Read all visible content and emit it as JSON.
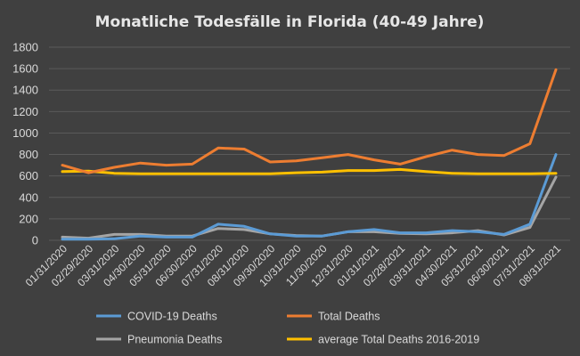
{
  "chart_data": {
    "type": "line",
    "title": "Monatliche Todesfälle  in Florida  (40-49 Jahre)",
    "xlabel": "",
    "ylabel": "",
    "ylim": [
      0,
      1800
    ],
    "yticks": [
      "0",
      "200",
      "400",
      "600",
      "800",
      "1000",
      "1200",
      "1400",
      "1600",
      "1800"
    ],
    "grid": true,
    "legend_position": "bottom",
    "categories": [
      "01/31/2020",
      "02/29/2020",
      "03/31/2020",
      "04/30/2020",
      "05/31/2020",
      "06/30/2020",
      "07/31/2020",
      "08/31/2020",
      "09/30/2020",
      "10/31/2020",
      "11/30/2020",
      "12/31/2020",
      "01/31/2021",
      "02/28/2021",
      "03/31/2021",
      "04/30/2021",
      "05/31/2021",
      "06/30/2021",
      "07/31/2021",
      "08/31/2021"
    ],
    "series": [
      {
        "name": "COVID-19 Deaths",
        "color": "#5b9bd5",
        "values": [
          10,
          10,
          15,
          40,
          30,
          30,
          150,
          130,
          60,
          40,
          40,
          80,
          100,
          70,
          70,
          90,
          80,
          55,
          150,
          800
        ]
      },
      {
        "name": "Total Deaths",
        "color": "#ed7d31",
        "values": [
          700,
          630,
          680,
          720,
          700,
          710,
          860,
          850,
          730,
          740,
          770,
          800,
          750,
          710,
          780,
          840,
          800,
          790,
          900,
          1590
        ]
      },
      {
        "name": "Pneumonia Deaths",
        "color": "#a5a5a5",
        "values": [
          30,
          20,
          55,
          55,
          40,
          40,
          110,
          100,
          60,
          45,
          40,
          80,
          80,
          65,
          60,
          70,
          90,
          50,
          120,
          590
        ]
      },
      {
        "name": "average Total Deaths 2016-2019",
        "color": "#ffc000",
        "values": [
          640,
          645,
          625,
          620,
          620,
          620,
          620,
          620,
          620,
          630,
          635,
          650,
          650,
          660,
          640,
          625,
          620,
          620,
          620,
          625
        ]
      }
    ]
  }
}
